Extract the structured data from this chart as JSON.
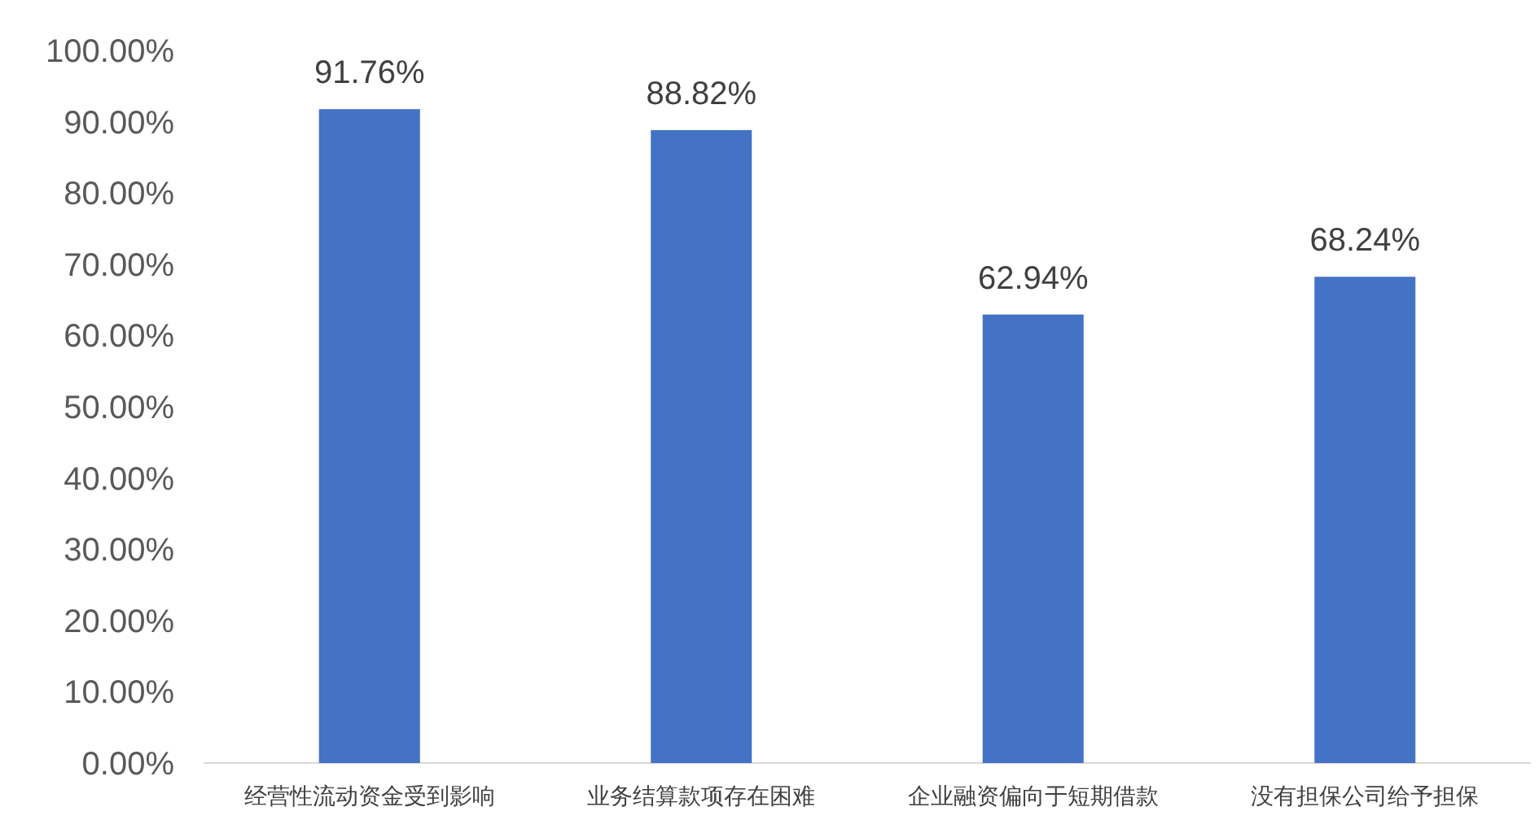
{
  "chart_data": {
    "type": "bar",
    "categories": [
      "经营性流动资金受到影响",
      "业务结算款项存在困难",
      "企业融资偏向于短期借款",
      "没有担保公司给予担保"
    ],
    "values": [
      91.76,
      88.82,
      62.94,
      68.24
    ],
    "value_labels": [
      "91.76%",
      "88.82%",
      "62.94%",
      "68.24%"
    ],
    "color": "#4472c4",
    "ylim": [
      0,
      100
    ],
    "yticks": [
      {
        "value": 0,
        "label": "0.00%"
      },
      {
        "value": 10,
        "label": "10.00%"
      },
      {
        "value": 20,
        "label": "20.00%"
      },
      {
        "value": 30,
        "label": "30.00%"
      },
      {
        "value": 40,
        "label": "40.00%"
      },
      {
        "value": 50,
        "label": "50.00%"
      },
      {
        "value": 60,
        "label": "60.00%"
      },
      {
        "value": 70,
        "label": "70.00%"
      },
      {
        "value": 80,
        "label": "80.00%"
      },
      {
        "value": 90,
        "label": "90.00%"
      },
      {
        "value": 100,
        "label": "100.00%"
      }
    ],
    "grid": false
  }
}
